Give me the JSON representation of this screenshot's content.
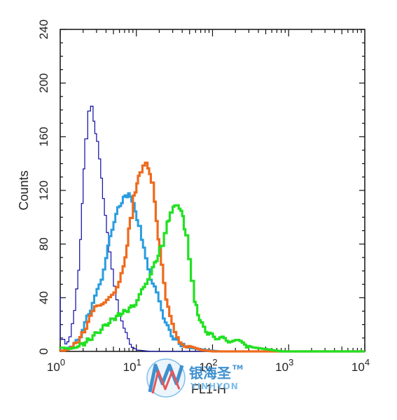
{
  "chart_data": {
    "type": "line",
    "title": "",
    "xlabel": "FL1-H",
    "ylabel": "Counts",
    "x_scale": "log",
    "xlim": [
      1,
      10000
    ],
    "ylim": [
      0,
      240
    ],
    "x_ticks": [
      1,
      10,
      100,
      1000,
      10000
    ],
    "x_tick_labels": [
      {
        "base": "10",
        "exp": "0"
      },
      {
        "base": "10",
        "exp": "1"
      },
      {
        "base": "10",
        "exp": "2"
      },
      {
        "base": "10",
        "exp": "3"
      },
      {
        "base": "10",
        "exp": "4"
      }
    ],
    "y_ticks": [
      0,
      40,
      80,
      120,
      160,
      200,
      240
    ],
    "y_tick_labels": [
      "0",
      "40",
      "80",
      "120",
      "160",
      "200",
      "240"
    ],
    "grid": false,
    "legend": "none",
    "series": [
      {
        "color": "#1a1aa8",
        "points": [
          [
            1.0,
            40
          ],
          [
            1.05,
            10
          ],
          [
            1.15,
            5
          ],
          [
            1.3,
            12
          ],
          [
            1.5,
            30
          ],
          [
            1.7,
            60
          ],
          [
            1.9,
            110
          ],
          [
            2.1,
            160
          ],
          [
            2.3,
            180
          ],
          [
            2.5,
            183
          ],
          [
            2.7,
            172
          ],
          [
            3.0,
            155
          ],
          [
            3.4,
            130
          ],
          [
            3.8,
            100
          ],
          [
            4.3,
            75
          ],
          [
            5.0,
            50
          ],
          [
            5.8,
            30
          ],
          [
            6.7,
            18
          ],
          [
            7.6,
            8
          ],
          [
            8.6,
            3
          ],
          [
            10,
            1
          ],
          [
            15,
            0
          ],
          [
            100,
            0
          ],
          [
            10000,
            0
          ]
        ]
      },
      {
        "color": "#2a9de0",
        "points": [
          [
            1.0,
            0
          ],
          [
            1.2,
            2
          ],
          [
            1.5,
            5
          ],
          [
            1.8,
            12
          ],
          [
            2.2,
            25
          ],
          [
            2.6,
            35
          ],
          [
            3.0,
            45
          ],
          [
            3.4,
            55
          ],
          [
            3.9,
            70
          ],
          [
            4.4,
            85
          ],
          [
            5.0,
            98
          ],
          [
            5.6,
            106
          ],
          [
            6.3,
            112
          ],
          [
            7.0,
            116
          ],
          [
            7.8,
            117
          ],
          [
            8.6,
            113
          ],
          [
            9.5,
            105
          ],
          [
            10.5,
            92
          ],
          [
            11.5,
            82
          ],
          [
            13,
            70
          ],
          [
            15,
            55
          ],
          [
            18,
            43
          ],
          [
            21,
            30
          ],
          [
            25,
            18
          ],
          [
            30,
            10
          ],
          [
            36,
            6
          ],
          [
            45,
            3
          ],
          [
            60,
            2
          ],
          [
            80,
            1
          ],
          [
            120,
            0
          ],
          [
            10000,
            0
          ]
        ]
      },
      {
        "color": "#ee6a1c",
        "points": [
          [
            1.0,
            0
          ],
          [
            1.3,
            2
          ],
          [
            1.6,
            6
          ],
          [
            2.0,
            15
          ],
          [
            2.4,
            25
          ],
          [
            2.8,
            32
          ],
          [
            3.2,
            35
          ],
          [
            3.7,
            38
          ],
          [
            4.3,
            42
          ],
          [
            5.0,
            45
          ],
          [
            5.8,
            52
          ],
          [
            6.6,
            62
          ],
          [
            7.4,
            80
          ],
          [
            8.2,
            100
          ],
          [
            9.0,
            115
          ],
          [
            10.0,
            125
          ],
          [
            11,
            135
          ],
          [
            12,
            140
          ],
          [
            13,
            142
          ],
          [
            14,
            138
          ],
          [
            15.5,
            125
          ],
          [
            17,
            110
          ],
          [
            19,
            85
          ],
          [
            21,
            65
          ],
          [
            24,
            40
          ],
          [
            27,
            25
          ],
          [
            31,
            15
          ],
          [
            36,
            8
          ],
          [
            42,
            5
          ],
          [
            55,
            3
          ],
          [
            70,
            1
          ],
          [
            100,
            0
          ],
          [
            10000,
            0
          ]
        ]
      },
      {
        "color": "#22e022",
        "points": [
          [
            1.0,
            3
          ],
          [
            1.3,
            2
          ],
          [
            1.6,
            3
          ],
          [
            2.0,
            6
          ],
          [
            2.5,
            10
          ],
          [
            3.0,
            14
          ],
          [
            3.6,
            18
          ],
          [
            4.3,
            22
          ],
          [
            5.1,
            25
          ],
          [
            6.0,
            28
          ],
          [
            7.1,
            30
          ],
          [
            8.4,
            33
          ],
          [
            10,
            37
          ],
          [
            11.5,
            45
          ],
          [
            13,
            52
          ],
          [
            15,
            58
          ],
          [
            17,
            65
          ],
          [
            19,
            72
          ],
          [
            21,
            80
          ],
          [
            23,
            88
          ],
          [
            25,
            96
          ],
          [
            27.5,
            102
          ],
          [
            30,
            107
          ],
          [
            33,
            110
          ],
          [
            36,
            108
          ],
          [
            40,
            100
          ],
          [
            44,
            85
          ],
          [
            48,
            68
          ],
          [
            52,
            52
          ],
          [
            57,
            38
          ],
          [
            63,
            28
          ],
          [
            70,
            20
          ],
          [
            80,
            15
          ],
          [
            95,
            12
          ],
          [
            115,
            10
          ],
          [
            140,
            9
          ],
          [
            170,
            8
          ],
          [
            210,
            7
          ],
          [
            260,
            5
          ],
          [
            330,
            3
          ],
          [
            450,
            2
          ],
          [
            600,
            1
          ],
          [
            800,
            0
          ],
          [
            10000,
            0
          ]
        ]
      }
    ]
  },
  "watermark": {
    "chinese": "银海圣",
    "trademark": "TM",
    "latin": "YINHYON",
    "colors": {
      "blue": "#1e7ec8",
      "red": "#e23a3a",
      "light_blue": "#6ab4e8"
    }
  },
  "colors": {
    "axis": "#111111",
    "background": "#ffffff"
  }
}
